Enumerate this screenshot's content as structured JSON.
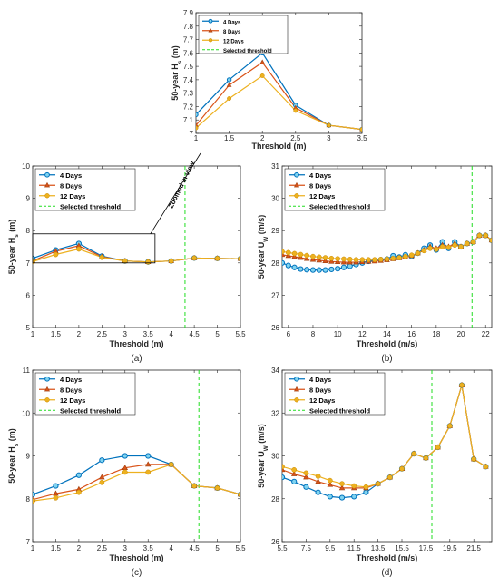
{
  "chart_data": [
    {
      "id": "inset",
      "type": "line",
      "xlabel": "Threshold (m)",
      "ylabel": "50-year H_s (m)",
      "xlim": [
        1,
        3.5
      ],
      "ylim": [
        7,
        7.9
      ],
      "xticks": [
        "1",
        "1.5",
        "2",
        "2.5",
        "3",
        "3.5"
      ],
      "yticks": [
        "7",
        "7.1",
        "7.2",
        "7.3",
        "7.4",
        "7.5",
        "7.6",
        "7.7",
        "7.8",
        "7.9"
      ],
      "legend_position": "top-left",
      "x": [
        1,
        1.5,
        2,
        2.5,
        3,
        3.5
      ],
      "series": [
        {
          "name": "4 Days",
          "marker": "circle",
          "color": "#0072BD",
          "values": [
            7.14,
            7.4,
            7.6,
            7.21,
            7.06,
            7.03
          ]
        },
        {
          "name": "8 Days",
          "marker": "triangle",
          "color": "#D95319",
          "values": [
            7.06,
            7.36,
            7.53,
            7.19,
            7.06,
            7.03
          ]
        },
        {
          "name": "12 Days",
          "marker": "circle",
          "color": "#EDB120",
          "values": [
            7.04,
            7.26,
            7.43,
            7.17,
            7.06,
            7.03
          ]
        }
      ],
      "threshold_label": "Selected threshold"
    },
    {
      "id": "a",
      "type": "line",
      "panel": "(a)",
      "xlabel": "Threshold (m)",
      "ylabel": "50-year H_s (m)",
      "xlim": [
        1,
        5.5
      ],
      "ylim": [
        5,
        10
      ],
      "xticks": [
        "1",
        "1.5",
        "2",
        "2.5",
        "3",
        "3.5",
        "4",
        "4.5",
        "5",
        "5.5"
      ],
      "yticks": [
        "5",
        "6",
        "7",
        "8",
        "9",
        "10"
      ],
      "legend_position": "top-left",
      "annotation": "Zoomed in view",
      "threshold": 4.3,
      "x": [
        1,
        1.5,
        2,
        2.5,
        3,
        3.5,
        4,
        4.5,
        5,
        5.5
      ],
      "series": [
        {
          "name": "4 Days",
          "marker": "circle",
          "color": "#0072BD",
          "values": [
            7.14,
            7.4,
            7.6,
            7.21,
            7.06,
            7.03,
            7.06,
            7.15,
            7.14,
            7.13
          ]
        },
        {
          "name": "8 Days",
          "marker": "triangle",
          "color": "#D95319",
          "values": [
            7.06,
            7.36,
            7.53,
            7.19,
            7.06,
            7.03,
            7.06,
            7.15,
            7.14,
            7.13
          ]
        },
        {
          "name": "12 Days",
          "marker": "circle",
          "color": "#EDB120",
          "values": [
            7.04,
            7.26,
            7.43,
            7.17,
            7.06,
            7.03,
            7.06,
            7.15,
            7.14,
            7.13
          ]
        }
      ],
      "threshold_label": "Selected threshold"
    },
    {
      "id": "b",
      "type": "line",
      "panel": "(b)",
      "xlabel": "Threshold (m/s)",
      "ylabel": "50-year U_W (m/s)",
      "xlim": [
        5.5,
        22.5
      ],
      "ylim": [
        26,
        31
      ],
      "xticks": [
        "6",
        "8",
        "10",
        "12",
        "14",
        "16",
        "18",
        "20",
        "22"
      ],
      "yticks": [
        "26",
        "27",
        "28",
        "29",
        "30",
        "31"
      ],
      "legend_position": "top-left",
      "threshold": 20.9,
      "x": [
        5.5,
        6,
        6.5,
        7,
        7.5,
        8,
        8.5,
        9,
        9.5,
        10,
        10.5,
        11,
        11.5,
        12,
        12.5,
        13,
        13.5,
        14,
        14.5,
        15,
        15.5,
        16,
        16.5,
        17,
        17.5,
        18,
        18.5,
        19,
        19.5,
        20,
        20.5,
        21,
        21.5,
        22,
        22.5
      ],
      "series": [
        {
          "name": "4 Days",
          "marker": "circle",
          "color": "#0072BD",
          "values": [
            28.0,
            27.92,
            27.86,
            27.81,
            27.79,
            27.78,
            27.78,
            27.78,
            27.8,
            27.82,
            27.86,
            27.9,
            27.95,
            28.0,
            28.05,
            28.08,
            28.1,
            28.12,
            28.22,
            28.18,
            28.25,
            28.2,
            28.3,
            28.45,
            28.55,
            28.4,
            28.65,
            28.45,
            28.65,
            28.5,
            28.6,
            28.65,
            28.85,
            28.85,
            28.7
          ]
        },
        {
          "name": "8 Days",
          "marker": "triangle",
          "color": "#D95319",
          "values": [
            28.25,
            28.22,
            28.19,
            28.16,
            28.13,
            28.1,
            28.08,
            28.06,
            28.04,
            28.03,
            28.02,
            28.02,
            28.02,
            28.03,
            28.04,
            28.05,
            28.07,
            28.09,
            28.12,
            28.15,
            28.18,
            28.22,
            28.3,
            28.4,
            28.5,
            28.45,
            28.55,
            28.5,
            28.6,
            28.5,
            28.6,
            28.65,
            28.85,
            28.85,
            28.7
          ]
        },
        {
          "name": "12 Days",
          "marker": "circle",
          "color": "#EDB120",
          "values": [
            28.35,
            28.32,
            28.29,
            28.26,
            28.23,
            28.2,
            28.18,
            28.16,
            28.14,
            28.13,
            28.12,
            28.11,
            28.1,
            28.1,
            28.1,
            28.1,
            28.11,
            28.12,
            28.14,
            28.16,
            28.2,
            28.24,
            28.3,
            28.38,
            28.45,
            28.42,
            28.5,
            28.48,
            28.55,
            28.5,
            28.6,
            28.65,
            28.85,
            28.85,
            28.7
          ]
        }
      ],
      "threshold_label": "Selected threshold"
    },
    {
      "id": "c",
      "type": "line",
      "panel": "(c)",
      "xlabel": "Threshold (m)",
      "ylabel": "50-year H_s (m)",
      "xlim": [
        1,
        5.5
      ],
      "ylim": [
        7,
        11
      ],
      "xticks": [
        "1",
        "1.5",
        "2",
        "2.5",
        "3",
        "3.5",
        "4",
        "4.5",
        "5",
        "5.5"
      ],
      "yticks": [
        "7",
        "8",
        "9",
        "10",
        "11"
      ],
      "legend_position": "top-left",
      "threshold": 4.6,
      "x": [
        1,
        1.5,
        2,
        2.5,
        3,
        3.5,
        4,
        4.5,
        5,
        5.5
      ],
      "series": [
        {
          "name": "4 Days",
          "marker": "circle",
          "color": "#0072BD",
          "values": [
            8.1,
            8.3,
            8.55,
            8.9,
            9.0,
            9.0,
            8.8,
            8.3,
            8.25,
            8.1
          ]
        },
        {
          "name": "8 Days",
          "marker": "triangle",
          "color": "#D95319",
          "values": [
            7.98,
            8.12,
            8.22,
            8.5,
            8.72,
            8.8,
            8.8,
            8.3,
            8.25,
            8.1
          ]
        },
        {
          "name": "12 Days",
          "marker": "circle",
          "color": "#EDB120",
          "values": [
            7.95,
            8.02,
            8.15,
            8.38,
            8.62,
            8.62,
            8.8,
            8.3,
            8.25,
            8.1
          ]
        }
      ],
      "threshold_label": "Selected threshold"
    },
    {
      "id": "d",
      "type": "line",
      "panel": "(d)",
      "xlabel": "Threshold (m/s)",
      "ylabel": "50-year U_W (m/s)",
      "xlim": [
        5.5,
        23
      ],
      "ylim": [
        26,
        34
      ],
      "xticks": [
        "5.5",
        "7.5",
        "9.5",
        "11.5",
        "13.5",
        "15.5",
        "17.5",
        "19.5",
        "21.5"
      ],
      "yticks": [
        "26",
        "28",
        "30",
        "32",
        "34"
      ],
      "legend_position": "top-left",
      "threshold": 18.0,
      "x": [
        5.5,
        6.5,
        7.5,
        8.5,
        9.5,
        10.5,
        11.5,
        12.5,
        13.5,
        14.5,
        15.5,
        16.5,
        17.5,
        18.5,
        19.5,
        20.5,
        21.5,
        22.5
      ],
      "series": [
        {
          "name": "4 Days",
          "marker": "circle",
          "color": "#0072BD",
          "values": [
            29.0,
            28.8,
            28.55,
            28.3,
            28.1,
            28.05,
            28.1,
            28.3,
            28.7,
            29.0,
            29.4,
            30.1,
            29.9,
            30.4,
            31.4,
            33.3,
            29.85,
            29.5
          ]
        },
        {
          "name": "8 Days",
          "marker": "triangle",
          "color": "#D95319",
          "values": [
            29.35,
            29.15,
            29.0,
            28.8,
            28.65,
            28.5,
            28.5,
            28.5,
            28.7,
            29.0,
            29.4,
            30.1,
            29.9,
            30.4,
            31.4,
            33.3,
            29.85,
            29.5
          ]
        },
        {
          "name": "12 Days",
          "marker": "circle",
          "color": "#EDB120",
          "values": [
            29.5,
            29.35,
            29.2,
            29.05,
            28.85,
            28.7,
            28.6,
            28.55,
            28.7,
            29.0,
            29.4,
            30.1,
            29.9,
            30.4,
            31.4,
            33.3,
            29.85,
            29.5
          ]
        }
      ],
      "threshold_label": "Selected threshold"
    }
  ]
}
